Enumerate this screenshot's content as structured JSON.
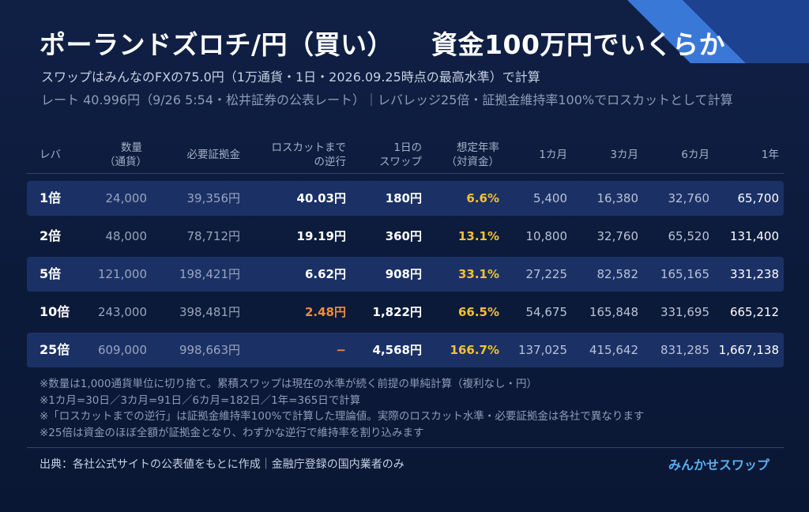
{
  "header": {
    "title_left": "ポーランドズロチ/円（買い）",
    "title_right": "資金100万円でいくらか",
    "subtitle_1": "スワップはみんなのFXの75.0円（1万通貨・1日・2026.09.25時点の最高水準）で計算",
    "subtitle_2": "レート 40.996円（9/26 5:54・松井証券の公表レート）｜レバレッジ25倍・証拠金維持率100%でロスカットとして計算"
  },
  "colors": {
    "background": "#0c1a3a",
    "row_highlight": "#1b3166",
    "rate_yellow": "#f2c230",
    "warning_orange": "#f28c3c",
    "brand_blue": "#5aaef0"
  },
  "table": {
    "headers": [
      {
        "l1": "レバ",
        "l2": ""
      },
      {
        "l1": "数量",
        "l2": "（通貨）"
      },
      {
        "l1": "必要証拠金",
        "l2": ""
      },
      {
        "l1": "ロスカットまで",
        "l2": "の逆行"
      },
      {
        "l1": "1日の",
        "l2": "スワップ"
      },
      {
        "l1": "想定年率",
        "l2": "（対資金）"
      },
      {
        "l1": "1カ月",
        "l2": ""
      },
      {
        "l1": "3カ月",
        "l2": ""
      },
      {
        "l1": "6カ月",
        "l2": ""
      },
      {
        "l1": "1年",
        "l2": ""
      }
    ],
    "rows": [
      {
        "lev": "1倍",
        "qty": "24,000",
        "margin": "39,356円",
        "loss": "40.03円",
        "day": "180円",
        "rate": "6.6%",
        "m1": "5,400",
        "m3": "16,380",
        "m6": "32,760",
        "y1": "65,700"
      },
      {
        "lev": "2倍",
        "qty": "48,000",
        "margin": "78,712円",
        "loss": "19.19円",
        "day": "360円",
        "rate": "13.1%",
        "m1": "10,800",
        "m3": "32,760",
        "m6": "65,520",
        "y1": "131,400"
      },
      {
        "lev": "5倍",
        "qty": "121,000",
        "margin": "198,421円",
        "loss": "6.62円",
        "day": "908円",
        "rate": "33.1%",
        "m1": "27,225",
        "m3": "82,582",
        "m6": "165,165",
        "y1": "331,238"
      },
      {
        "lev": "10倍",
        "qty": "243,000",
        "margin": "398,481円",
        "loss": "2.48円",
        "day": "1,822円",
        "rate": "66.5%",
        "m1": "54,675",
        "m3": "165,848",
        "m6": "331,695",
        "y1": "665,212"
      },
      {
        "lev": "25倍",
        "qty": "609,000",
        "margin": "998,663円",
        "loss": "−",
        "day": "4,568円",
        "rate": "166.7%",
        "m1": "137,025",
        "m3": "415,642",
        "m6": "831,285",
        "y1": "1,667,138"
      }
    ]
  },
  "notes": [
    "※数量は1,000通貨単位に切り捨て。累積スワップは現在の水準が続く前提の単純計算（複利なし・円）",
    "※1カ月=30日／3カ月=91日／6カ月=182日／1年=365日で計算",
    "※「ロスカットまでの逆行」は証拠金維持率100%で計算した理論値。実際のロスカット水準・必要証拠金は各社で異なります",
    "※25倍は資金のほぼ全額が証拠金となり、わずかな逆行で維持率を割り込みます"
  ],
  "footer": {
    "source": "出典：各社公式サイトの公表値をもとに作成｜金融庁登録の国内業者のみ",
    "brand": "みんかせスワップ"
  }
}
